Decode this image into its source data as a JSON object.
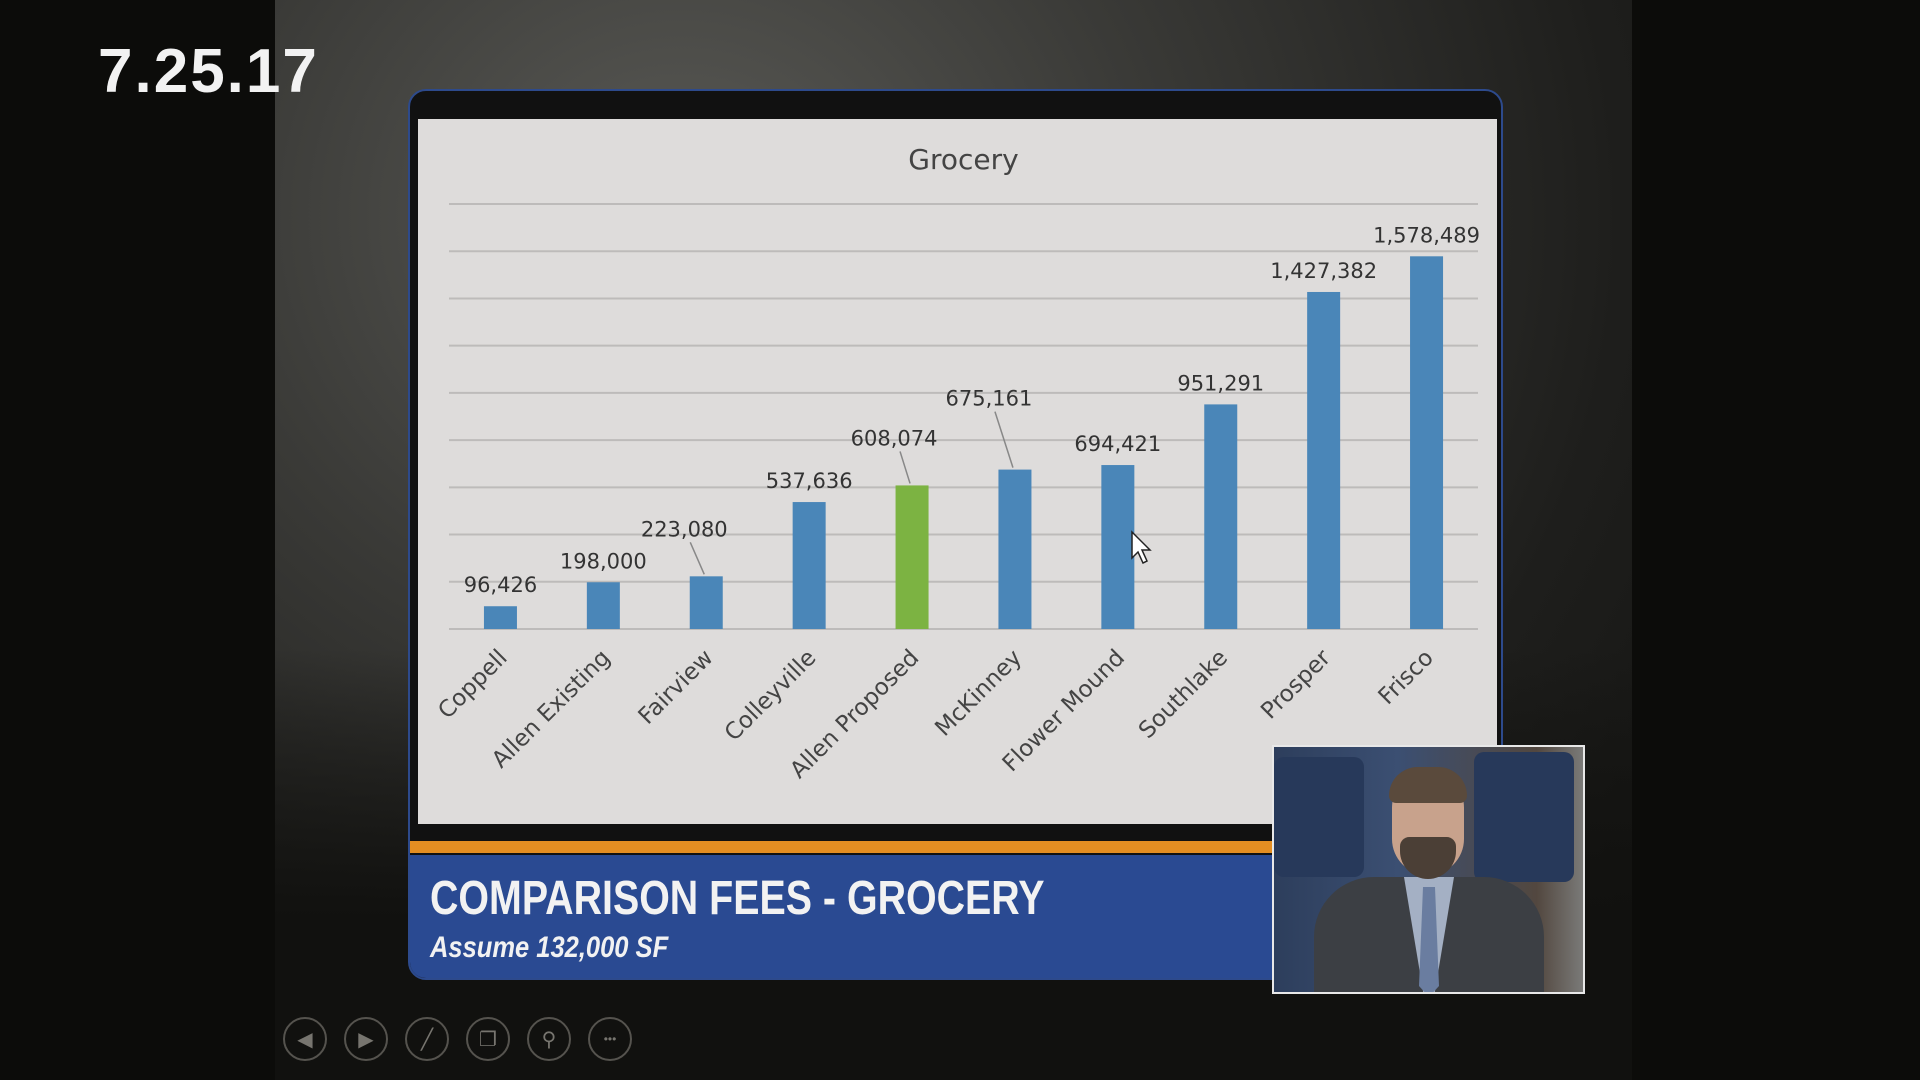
{
  "overlay": {
    "date": "7.25.17"
  },
  "slide": {
    "title": "COMPARISON FEES - GROCERY",
    "subtitle": "Assume 132,000 SF"
  },
  "controls": [
    {
      "icon": "previous-icon",
      "glyph": "◀"
    },
    {
      "icon": "next-icon",
      "glyph": "▶"
    },
    {
      "icon": "pen-icon",
      "glyph": "╱"
    },
    {
      "icon": "slides-icon",
      "glyph": "❐"
    },
    {
      "icon": "zoom-icon",
      "glyph": "⚲"
    },
    {
      "icon": "more-icon",
      "glyph": "•••"
    }
  ],
  "colors": {
    "bar": "#4a86b8",
    "highlight": "#7cb342",
    "band": "#2a4a92",
    "accent": "#e48e22"
  },
  "chart_data": {
    "type": "bar",
    "title": "Grocery",
    "categories": [
      "Coppell",
      "Allen Existing",
      "Fairview",
      "Colleyville",
      "Allen Proposed",
      "McKinney",
      "Flower Mound",
      "Southlake",
      "Prosper",
      "Frisco"
    ],
    "values": [
      96426,
      198000,
      223080,
      537636,
      608074,
      675161,
      694421,
      951291,
      1427382,
      1578489
    ],
    "data_labels": [
      "96,426",
      "198,000",
      "223,080",
      "537,636",
      "608,074",
      "675,161",
      "694,421",
      "951,291",
      "1,427,382",
      "1,578,489"
    ],
    "highlight_index": 4,
    "ylim": [
      0,
      1800000
    ],
    "grid_step": 200000,
    "grid": true,
    "xlabel": "",
    "ylabel": ""
  }
}
